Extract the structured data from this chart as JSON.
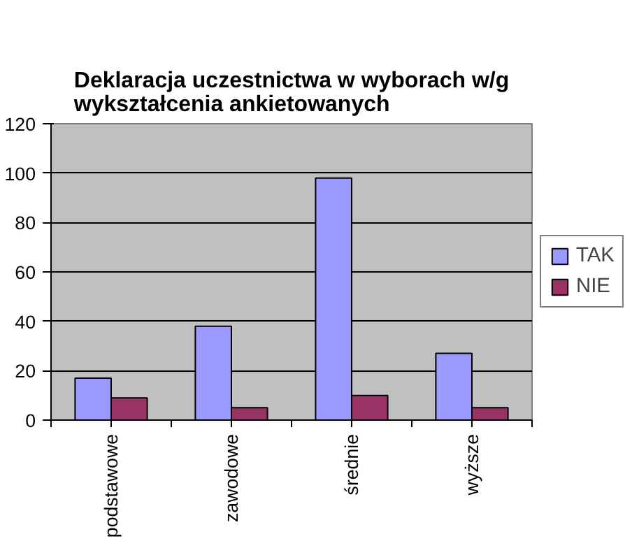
{
  "chart_data": {
    "type": "bar",
    "title": "Deklaracja uczestnictwa w wyborach w/g\nwykształcenia ankietowanych",
    "categories": [
      "podstawowe",
      "zawodowe",
      "średnie",
      "wyższe"
    ],
    "series": [
      {
        "name": "TAK",
        "color": "#9999ff",
        "values": [
          17,
          38,
          98,
          27
        ]
      },
      {
        "name": "NIE",
        "color": "#993366",
        "values": [
          9,
          5,
          10,
          5
        ]
      }
    ],
    "ylim": [
      0,
      120
    ],
    "yticks": [
      0,
      20,
      40,
      60,
      80,
      100,
      120
    ],
    "grid": "y",
    "legend": "right"
  }
}
